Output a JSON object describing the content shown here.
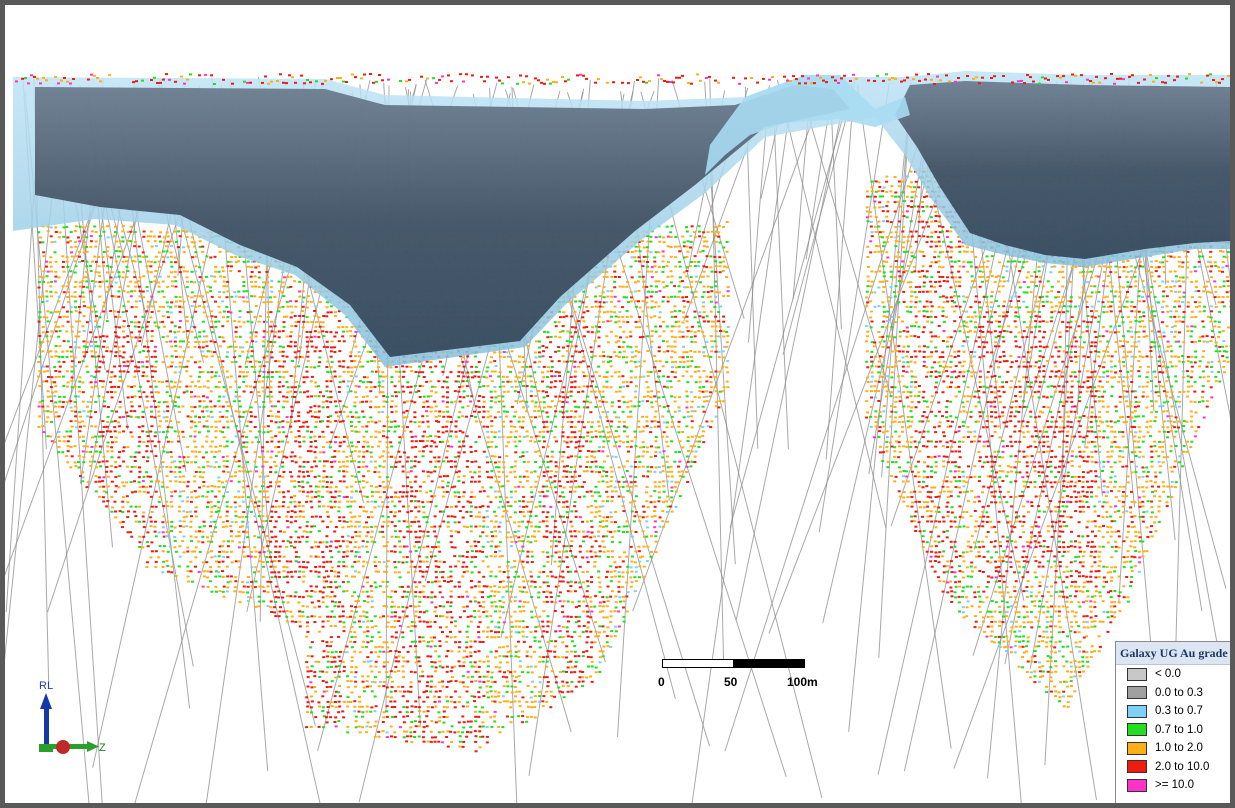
{
  "legend": {
    "title": "Galaxy UG Au grade",
    "items": [
      {
        "label": "< 0.0",
        "color": "#c8c8c8"
      },
      {
        "label": "0.0 to 0.3",
        "color": "#a0a0a0"
      },
      {
        "label": "0.3 to 0.7",
        "color": "#7fd0f5"
      },
      {
        "label": "0.7 to 1.0",
        "color": "#22dd22"
      },
      {
        "label": "1.0 to 2.0",
        "color": "#ffae1a"
      },
      {
        "label": "2.0 to 10.0",
        "color": "#ee1c10"
      },
      {
        "label": ">= 10.0",
        "color": "#ff33cc"
      }
    ]
  },
  "scalebar": {
    "labels": [
      "0",
      "50",
      "100m"
    ]
  },
  "axes": {
    "vertical_label": "RL",
    "horizontal_label": "Z"
  }
}
